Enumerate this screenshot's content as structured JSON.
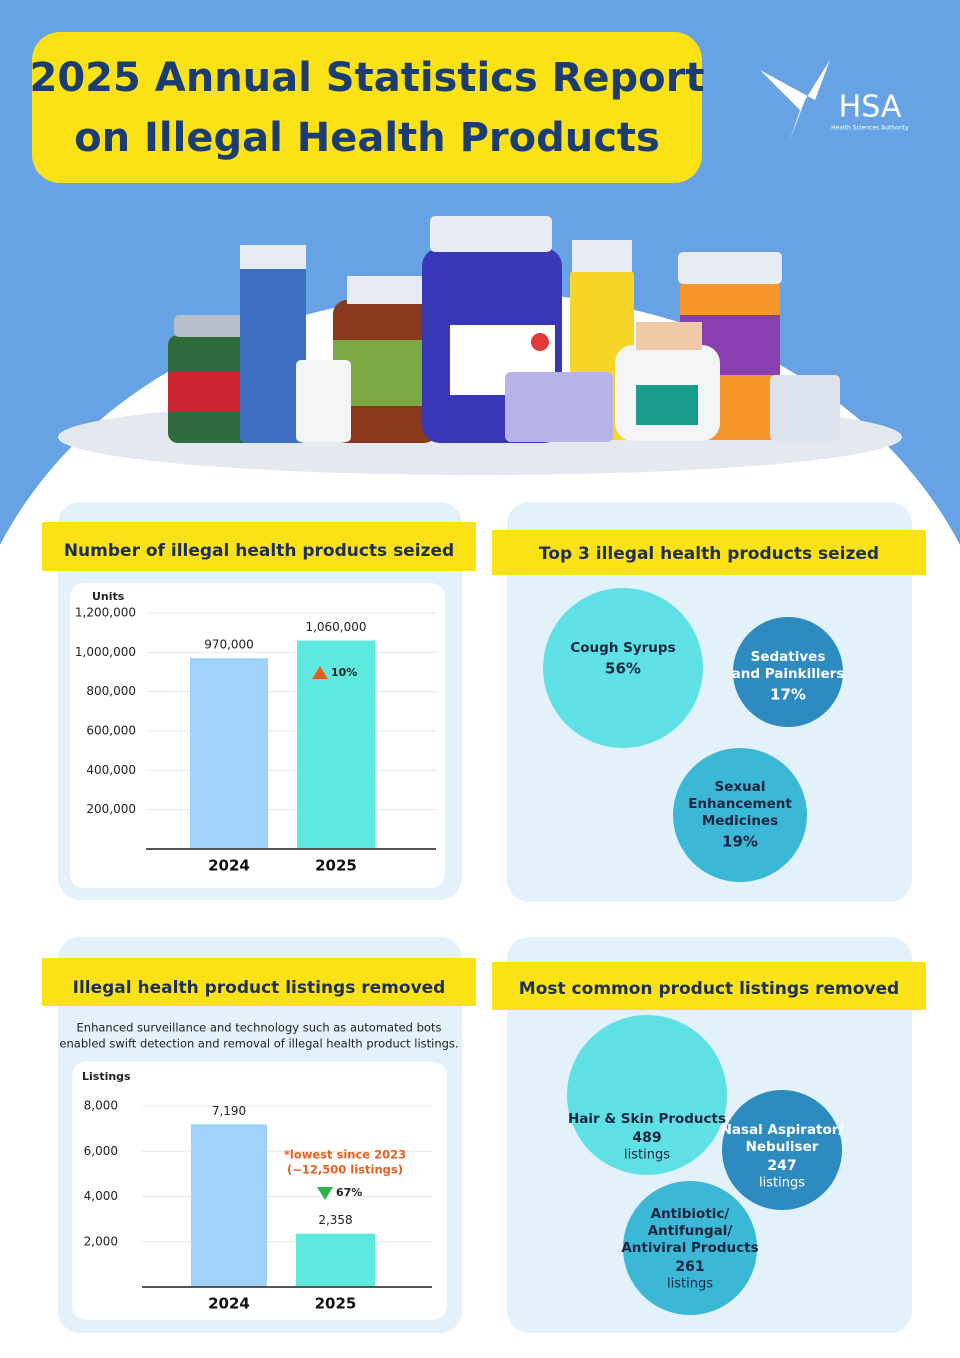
{
  "header": {
    "title_lines": [
      "2025 Annual Statistics Report",
      "on Illegal Health Products"
    ],
    "logo": "HSA",
    "logo_tagline": "Health Sciences Authority"
  },
  "chart_data": [
    {
      "type": "bar",
      "title": "Number of illegal health products seized",
      "y_label": "Units",
      "categories": [
        "2024",
        "2025"
      ],
      "values": [
        970000,
        1060000
      ],
      "value_labels": [
        "970,000",
        "1,060,000"
      ],
      "colors": [
        "#9fd2f8",
        "#5ee9df"
      ],
      "ylim": [
        0,
        1200000
      ],
      "yticks": [
        {
          "value": 200000,
          "label": "200,000"
        },
        {
          "value": 400000,
          "label": "400,000"
        },
        {
          "value": 600000,
          "label": "600,000"
        },
        {
          "value": 800000,
          "label": "800,000"
        },
        {
          "value": 1000000,
          "label": "1,000,000"
        },
        {
          "value": 1200000,
          "label": "1,200,000"
        }
      ],
      "grid": true,
      "change": {
        "direction": "up",
        "label": "10%",
        "color": "#e8601c"
      }
    },
    {
      "type": "bar",
      "title": "Illegal health product listings removed",
      "description": [
        "Enhanced surveillance and technology such as automated bots",
        "enabled swift detection and removal of illegal health product listings."
      ],
      "y_label": "Listings",
      "categories": [
        "2024",
        "2025"
      ],
      "values": [
        7190,
        2358
      ],
      "value_labels": [
        "7,190",
        "2,358"
      ],
      "colors": [
        "#9fd2f8",
        "#5ee9df"
      ],
      "ylim": [
        0,
        8000
      ],
      "yticks": [
        {
          "value": 2000,
          "label": "2,000"
        },
        {
          "value": 4000,
          "label": "4,000"
        },
        {
          "value": 6000,
          "label": "6,000"
        },
        {
          "value": 8000,
          "label": "8,000"
        }
      ],
      "grid": true,
      "note": [
        "*lowest since 2023",
        "(~12,500 listings)"
      ],
      "change": {
        "direction": "down",
        "label": "67%",
        "color": "#2bb24c"
      }
    }
  ],
  "top_products": {
    "title": "Top 3 illegal health products seized",
    "items": [
      {
        "label": [
          "Cough Syrups"
        ],
        "share": "56%"
      },
      {
        "label": [
          "Sedatives",
          "and Painkillers"
        ],
        "share": "17%"
      },
      {
        "label": [
          "Sexual",
          "Enhancement",
          "Medicines"
        ],
        "share": "19%"
      }
    ]
  },
  "common_listings": {
    "title": "Most common product listings removed",
    "items": [
      {
        "label": [
          "Hair & Skin Products"
        ],
        "count": "489",
        "unit": "listings"
      },
      {
        "label": [
          "Nasal Aspirator/",
          "Nebuliser"
        ],
        "count": "247",
        "unit": "listings"
      },
      {
        "label": [
          "Antibiotic/",
          "Antifungal/",
          "Antiviral Products"
        ],
        "count": "261",
        "unit": "listings"
      }
    ]
  }
}
